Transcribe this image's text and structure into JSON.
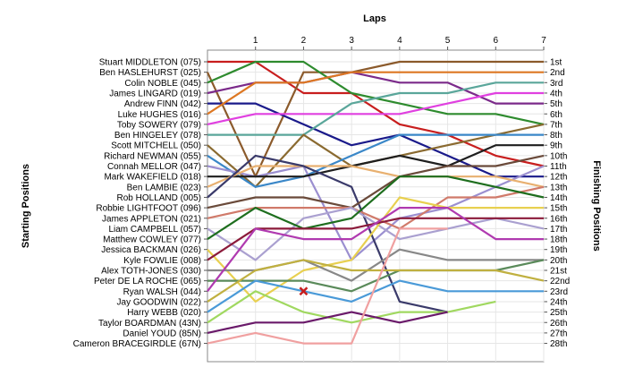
{
  "chart_data": {
    "type": "line",
    "title": "Laps",
    "ylabel_left": "Starting Positions",
    "ylabel_right": "Finishing Positions",
    "x_ticks": [
      "1",
      "2",
      "3",
      "4",
      "5",
      "6",
      "7"
    ],
    "finish_labels": [
      "1st",
      "2nd",
      "3rd",
      "4th",
      "5th",
      "6th",
      "7th",
      "8th",
      "9th",
      "10th",
      "11th",
      "12th",
      "13th",
      "14th",
      "15th",
      "16th",
      "17th",
      "18th",
      "19th",
      "20th",
      "21st",
      "22nd",
      "23rd",
      "24th",
      "25th",
      "26th",
      "27th",
      "28th"
    ],
    "drivers": [
      "Stuart MIDDLETON (075)",
      "Ben HASLEHURST (025)",
      "Colin NOBLE (045)",
      "James LINGARD (019)",
      "Andrew FINN (042)",
      "Luke HUGHES (016)",
      "Toby SOWERY (079)",
      "Ben HINGELEY (078)",
      "Scott MITCHELL (050)",
      "Richard NEWMAN (055)",
      "Connah MELLOR (047)",
      "Mark WAKEFIELD (018)",
      "Ben LAMBIE (023)",
      "Rob HOLLAND (005)",
      "Robbie LIGHTFOOT (096)",
      "James APPLETON (021)",
      "Liam CAMPBELL (057)",
      "Matthew COWLEY (077)",
      "Jessica BACKMAN (026)",
      "Kyle FOWLIE (008)",
      "Alex TOTH-JONES (030)",
      "Peter DE LA ROCHE (065)",
      "Ryan WALSH (044)",
      "Jay GOODWIN (022)",
      "Harry WEBB (020)",
      "Taylor BOARDMAN (43N)",
      "Daniel YOUD (85N)",
      "Cameron BRACEGIRDLE (67N)"
    ],
    "x_range": [
      0,
      7
    ],
    "y_range": [
      1,
      28
    ],
    "grid": true,
    "series": [
      {
        "color": "#c81e1e",
        "positions": [
          1,
          4,
          4,
          7,
          8,
          10,
          11
        ]
      },
      {
        "color": "#8b5a2b",
        "positions": [
          12,
          2,
          2,
          1,
          1,
          1,
          1
        ]
      },
      {
        "color": "#2e8b2e",
        "positions": [
          1,
          1,
          4,
          5,
          6,
          6,
          7
        ]
      },
      {
        "color": "#7b2a8a",
        "positions": [
          3,
          3,
          2,
          3,
          3,
          5,
          5
        ]
      },
      {
        "color": "#1a1a8a",
        "positions": [
          5,
          7,
          9,
          8,
          10,
          12,
          12
        ]
      },
      {
        "color": "#dd7722",
        "positions": [
          3,
          3,
          2,
          2,
          2,
          2,
          2
        ]
      },
      {
        "color": "#e040e0",
        "positions": [
          6,
          6,
          6,
          6,
          5,
          4,
          4
        ]
      },
      {
        "color": "#5aa69a",
        "positions": [
          8,
          8,
          5,
          4,
          4,
          3,
          3
        ]
      },
      {
        "color": "#8a6a30",
        "positions": [
          13,
          8,
          11,
          10,
          9,
          8,
          7
        ]
      },
      {
        "color": "#3a87c8",
        "positions": [
          13,
          12,
          10,
          8,
          8,
          8,
          8
        ]
      },
      {
        "color": "#9b8fd0",
        "positions": [
          12,
          11,
          20,
          16,
          15,
          13,
          11
        ]
      },
      {
        "color": "#1e1e1e",
        "positions": [
          12,
          12,
          11,
          10,
          11,
          9,
          9
        ]
      },
      {
        "color": "#e8b070",
        "positions": [
          11,
          11,
          11,
          12,
          12,
          12,
          13
        ]
      },
      {
        "color": "#3a3a6a",
        "positions": [
          10,
          11,
          13,
          24,
          25,
          null,
          null
        ]
      },
      {
        "color": "#6a4a3a",
        "positions": [
          14,
          14,
          15,
          12,
          11,
          11,
          10
        ]
      },
      {
        "color": "#d07a6a",
        "positions": [
          15,
          15,
          15,
          17,
          14,
          14,
          13
        ]
      },
      {
        "color": "#aaa0d0",
        "positions": [
          20,
          16,
          15,
          18,
          17,
          16,
          17
        ]
      },
      {
        "color": "#1e6e1e",
        "positions": [
          15,
          17,
          16,
          12,
          12,
          13,
          14
        ]
      },
      {
        "color": "#e8d050",
        "positions": [
          24,
          21,
          20,
          14,
          15,
          15,
          15
        ]
      },
      {
        "color": "#8b1a3a",
        "positions": [
          17,
          17,
          17,
          16,
          16,
          16,
          16
        ]
      },
      {
        "color": "#888888",
        "positions": [
          21,
          20,
          22,
          19,
          20,
          20,
          20
        ]
      },
      {
        "color": "#5a8a5a",
        "positions": [
          22,
          22,
          23,
          21,
          21,
          21,
          20
        ]
      },
      {
        "color": "#b03ab0",
        "positions": [
          17,
          18,
          18,
          15,
          15,
          18,
          18
        ]
      },
      {
        "color": "#c0b040",
        "positions": [
          21,
          20,
          21,
          21,
          21,
          21,
          22
        ]
      },
      {
        "color": "#4a9ad8",
        "positions": [
          22,
          23,
          24,
          22,
          23,
          23,
          23
        ]
      },
      {
        "color": "#a0d860",
        "positions": [
          23,
          25,
          26,
          25,
          25,
          24,
          null
        ]
      },
      {
        "color": "#6a1a6a",
        "positions": [
          26,
          26,
          25,
          26,
          25,
          null,
          null
        ]
      },
      {
        "color": "#f0a0a0",
        "positions": [
          27,
          28,
          28,
          17,
          17,
          null,
          null
        ]
      }
    ],
    "marker": {
      "type": "x",
      "color": "#c81e1e",
      "lap": 2,
      "position": 23
    }
  }
}
